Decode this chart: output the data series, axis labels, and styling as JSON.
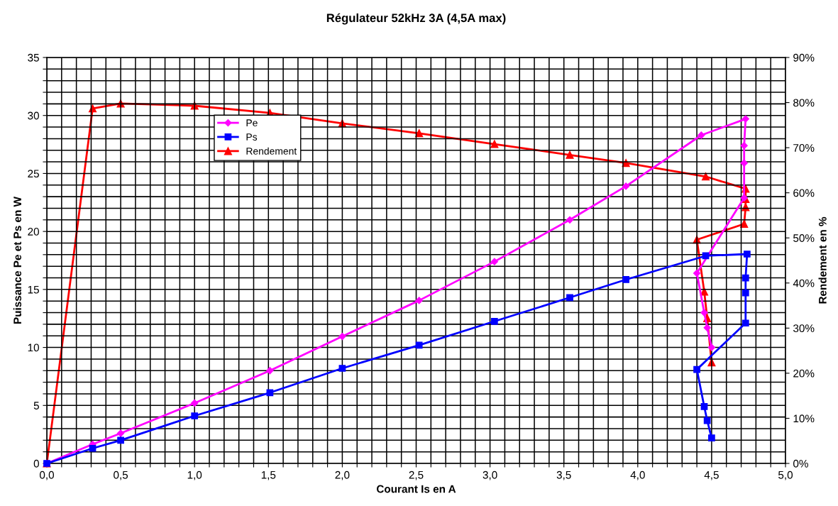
{
  "chart_data": {
    "type": "line",
    "title": "Régulateur 52kHz 3A (4,5A max)",
    "xlabel": "Courant Is en A",
    "ylabel": "Puissance Pe et Ps en W",
    "y2label": "Rendement en %",
    "xlim": [
      0,
      5
    ],
    "ylim": [
      0,
      35
    ],
    "y2lim": [
      0,
      90
    ],
    "xticks": [
      {
        "value": 0,
        "label": "0,0"
      },
      {
        "value": 0.1,
        "label": null
      },
      {
        "value": 0.2,
        "label": null
      },
      {
        "value": 0.3,
        "label": null
      },
      {
        "value": 0.4,
        "label": null
      },
      {
        "value": 0.5,
        "label": "0,5"
      },
      {
        "value": 0.6,
        "label": null
      },
      {
        "value": 0.7,
        "label": null
      },
      {
        "value": 0.8,
        "label": null
      },
      {
        "value": 0.9,
        "label": null
      },
      {
        "value": 1.0,
        "label": "1,0"
      },
      {
        "value": 1.1,
        "label": null
      },
      {
        "value": 1.2,
        "label": null
      },
      {
        "value": 1.3,
        "label": null
      },
      {
        "value": 1.4,
        "label": null
      },
      {
        "value": 1.5,
        "label": "1,5"
      },
      {
        "value": 1.6,
        "label": null
      },
      {
        "value": 1.7,
        "label": null
      },
      {
        "value": 1.8,
        "label": null
      },
      {
        "value": 1.9,
        "label": null
      },
      {
        "value": 2.0,
        "label": "2,0"
      },
      {
        "value": 2.1,
        "label": null
      },
      {
        "value": 2.2,
        "label": null
      },
      {
        "value": 2.3,
        "label": null
      },
      {
        "value": 2.4,
        "label": null
      },
      {
        "value": 2.5,
        "label": "2,5"
      },
      {
        "value": 2.6,
        "label": null
      },
      {
        "value": 2.7,
        "label": null
      },
      {
        "value": 2.8,
        "label": null
      },
      {
        "value": 2.9,
        "label": null
      },
      {
        "value": 3.0,
        "label": "3,0"
      },
      {
        "value": 3.1,
        "label": null
      },
      {
        "value": 3.2,
        "label": null
      },
      {
        "value": 3.3,
        "label": null
      },
      {
        "value": 3.4,
        "label": null
      },
      {
        "value": 3.5,
        "label": "3,5"
      },
      {
        "value": 3.6,
        "label": null
      },
      {
        "value": 3.7,
        "label": null
      },
      {
        "value": 3.8,
        "label": null
      },
      {
        "value": 3.9,
        "label": null
      },
      {
        "value": 4.0,
        "label": "4,0"
      },
      {
        "value": 4.1,
        "label": null
      },
      {
        "value": 4.2,
        "label": null
      },
      {
        "value": 4.3,
        "label": null
      },
      {
        "value": 4.4,
        "label": null
      },
      {
        "value": 4.5,
        "label": "4,5"
      },
      {
        "value": 4.6,
        "label": null
      },
      {
        "value": 4.7,
        "label": null
      },
      {
        "value": 4.8,
        "label": null
      },
      {
        "value": 4.9,
        "label": null
      },
      {
        "value": 5.0,
        "label": "5,0"
      }
    ],
    "yticks": [
      0,
      {
        "value": 1,
        "label": null
      },
      {
        "value": 2,
        "label": null
      },
      {
        "value": 3,
        "label": null
      },
      {
        "value": 4,
        "label": null
      },
      5,
      {
        "value": 6,
        "label": null
      },
      {
        "value": 7,
        "label": null
      },
      {
        "value": 8,
        "label": null
      },
      {
        "value": 9,
        "label": null
      },
      10,
      {
        "value": 11,
        "label": null
      },
      {
        "value": 12,
        "label": null
      },
      {
        "value": 13,
        "label": null
      },
      {
        "value": 14,
        "label": null
      },
      15,
      {
        "value": 16,
        "label": null
      },
      {
        "value": 17,
        "label": null
      },
      {
        "value": 18,
        "label": null
      },
      {
        "value": 19,
        "label": null
      },
      20,
      {
        "value": 21,
        "label": null
      },
      {
        "value": 22,
        "label": null
      },
      {
        "value": 23,
        "label": null
      },
      {
        "value": 24,
        "label": null
      },
      25,
      {
        "value": 26,
        "label": null
      },
      {
        "value": 27,
        "label": null
      },
      {
        "value": 28,
        "label": null
      },
      {
        "value": 29,
        "label": null
      },
      30,
      {
        "value": 31,
        "label": null
      },
      {
        "value": 32,
        "label": null
      },
      {
        "value": 33,
        "label": null
      },
      {
        "value": 34,
        "label": null
      },
      35
    ],
    "y2ticks": [
      {
        "value": 0,
        "label": "0%"
      },
      {
        "value": 10,
        "label": "10%"
      },
      {
        "value": 20,
        "label": "20%"
      },
      {
        "value": 30,
        "label": "30%"
      },
      {
        "value": 40,
        "label": "40%"
      },
      {
        "value": 50,
        "label": "50%"
      },
      {
        "value": 60,
        "label": "60%"
      },
      {
        "value": 70,
        "label": "70%"
      },
      {
        "value": 80,
        "label": "80%"
      },
      {
        "value": 90,
        "label": "90%"
      }
    ],
    "grid": true,
    "legend": "top left",
    "series": [
      {
        "name": "Pe",
        "color": "#ff00ff",
        "marker": "diamond",
        "x": [
          0,
          0.31,
          0.5,
          1.0,
          1.51,
          2.0,
          2.52,
          3.03,
          3.54,
          3.92,
          4.43,
          4.73,
          4.72,
          4.72,
          4.72,
          4.4,
          4.45,
          4.47,
          4.5
        ],
        "values": [
          0,
          1.65,
          2.6,
          5.2,
          8.0,
          10.95,
          14.05,
          17.4,
          21.0,
          23.9,
          28.3,
          29.7,
          27.4,
          25.9,
          22.9,
          16.4,
          13.0,
          11.7,
          10.0
        ]
      },
      {
        "name": "Ps",
        "color": "#0000ff",
        "marker": "square",
        "x": [
          0,
          0.31,
          0.5,
          1.0,
          1.51,
          2.0,
          2.52,
          3.03,
          3.54,
          3.92,
          4.46,
          4.74,
          4.73,
          4.73,
          4.73,
          4.4,
          4.45,
          4.47,
          4.5
        ],
        "values": [
          0,
          1.3,
          2.0,
          4.1,
          6.1,
          8.2,
          10.2,
          12.25,
          14.3,
          15.85,
          17.9,
          18.05,
          16.0,
          14.7,
          12.1,
          8.1,
          4.9,
          3.7,
          2.2
        ]
      },
      {
        "name": "Rendement",
        "color": "#ff0000",
        "marker": "triangle",
        "axis": "y2",
        "x": [
          0,
          0.31,
          0.5,
          1.0,
          1.51,
          2.0,
          2.52,
          3.03,
          3.54,
          3.92,
          4.46,
          4.73,
          4.73,
          4.73,
          4.72,
          4.4,
          4.45,
          4.47,
          4.5
        ],
        "values": [
          0,
          78.7,
          79.8,
          79.3,
          77.7,
          75.4,
          73.2,
          70.8,
          68.4,
          66.6,
          63.6,
          60.9,
          58.6,
          56.8,
          53.1,
          49.6,
          38.1,
          32.2,
          22.4
        ]
      }
    ]
  }
}
